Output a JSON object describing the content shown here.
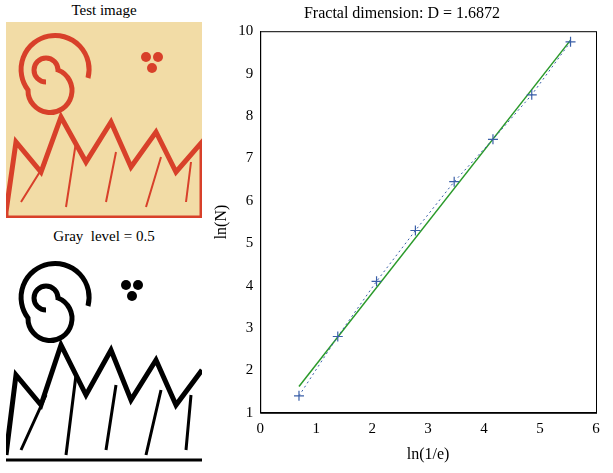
{
  "images": [
    {
      "title": "Test image"
    },
    {
      "title": "Gray  level = 0.5"
    }
  ],
  "chart_data": {
    "type": "scatter",
    "title": "Fractal dimension: D = 1.6872",
    "x_label": "ln(1/e)",
    "y_label": "ln(N)",
    "xlim": [
      0,
      6
    ],
    "xticks": [
      0,
      1,
      2,
      3,
      4,
      5,
      6
    ],
    "ylim": [
      1,
      10
    ],
    "yticks": [
      1,
      2,
      3,
      4,
      5,
      6,
      7,
      8,
      9,
      10
    ],
    "grid": false,
    "series": [
      {
        "type": "scatter",
        "color": "#3a5fa8",
        "marker": "+",
        "line_style": "dotted",
        "x": [
          0.693,
          1.386,
          2.079,
          2.773,
          3.466,
          4.159,
          4.852,
          5.545
        ],
        "values": [
          1.4,
          2.8,
          4.1,
          5.3,
          6.45,
          7.45,
          8.5,
          9.75
        ]
      },
      {
        "type": "line",
        "color": "#2a9a2a",
        "line_style": "solid",
        "x": [
          0.693,
          5.545
        ],
        "values": [
          1.62,
          9.79
        ]
      }
    ]
  }
}
